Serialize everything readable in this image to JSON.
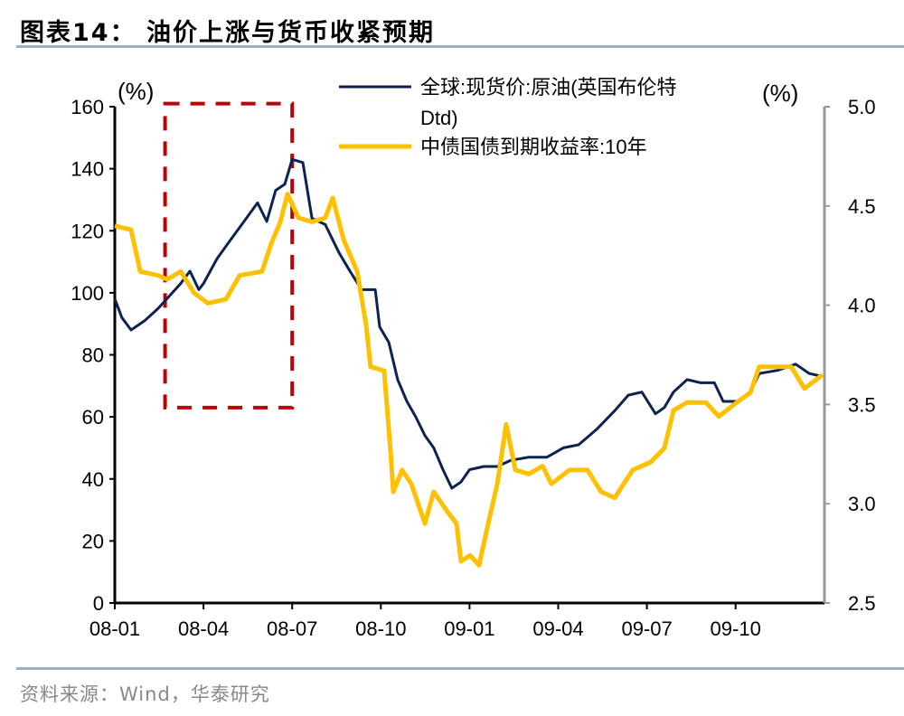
{
  "title": "图表14：  油价上涨与货币收紧预期",
  "source": "资料来源：Wind，华泰研究",
  "chart_data": {
    "type": "line",
    "title": "油价上涨与货币收紧预期",
    "x_unit": "months since 2008-01",
    "x_ticks": [
      {
        "m": 0,
        "label": "08-01"
      },
      {
        "m": 3,
        "label": "08-04"
      },
      {
        "m": 6,
        "label": "08-07"
      },
      {
        "m": 9,
        "label": "08-10"
      },
      {
        "m": 12,
        "label": "09-01"
      },
      {
        "m": 15,
        "label": "09-04"
      },
      {
        "m": 18,
        "label": "09-07"
      },
      {
        "m": 21,
        "label": "09-10"
      }
    ],
    "xlim": [
      0,
      24
    ],
    "left_axis": {
      "label": "(%)",
      "ylim": [
        0,
        160
      ],
      "ticks": [
        "0",
        "20",
        "40",
        "60",
        "80",
        "100",
        "120",
        "140",
        "160"
      ]
    },
    "right_axis": {
      "label": "(%)",
      "ylim": [
        2.5,
        5.0
      ],
      "ticks": [
        "2.5",
        "3.0",
        "3.5",
        "4.0",
        "4.5",
        "5.0"
      ]
    },
    "legend_position": "top-right",
    "series": [
      {
        "name": "全球:现货价:原油(英国布伦特Dtd)",
        "axis": "left",
        "color": "#0c2352",
        "x": [
          0,
          0.24,
          0.55,
          1.01,
          1.47,
          2.23,
          2.54,
          2.84,
          3.0,
          3.46,
          3.91,
          4.37,
          4.83,
          5.14,
          5.44,
          5.75,
          6.0,
          6.36,
          6.67,
          7.12,
          7.58,
          7.89,
          8.35,
          8.81,
          8.96,
          9.27,
          9.57,
          9.88,
          10.18,
          10.49,
          10.79,
          11.1,
          11.4,
          11.71,
          12.0,
          12.48,
          12.94,
          13.39,
          14.01,
          14.62,
          15.17,
          15.69,
          16.3,
          16.91,
          17.37,
          17.83,
          18.29,
          18.59,
          18.9,
          19.36,
          19.82,
          20.28,
          20.58,
          21.04,
          21.5,
          21.8,
          22.42,
          23.03,
          23.49,
          23.94
        ],
        "y": [
          98,
          92,
          88,
          91,
          95,
          103,
          107,
          101,
          103,
          111,
          117,
          123,
          129,
          123,
          133,
          135,
          143,
          142,
          124,
          122,
          113,
          108,
          101,
          101,
          89,
          84,
          72,
          65,
          60,
          54,
          50,
          43,
          37,
          39,
          43,
          44,
          44,
          46,
          47,
          47,
          50,
          51,
          56,
          62,
          67,
          68,
          61,
          63,
          68,
          72,
          71,
          71,
          65,
          65,
          68,
          74,
          75,
          77,
          74,
          73
        ]
      },
      {
        "name": "中债国债到期收益率:10年",
        "axis": "right",
        "color": "#ffc000",
        "x": [
          0,
          0.55,
          0.86,
          1.47,
          1.77,
          2.23,
          2.69,
          3.15,
          3.76,
          4.22,
          4.98,
          5.29,
          5.6,
          5.84,
          6.21,
          6.67,
          7.12,
          7.37,
          7.74,
          8.2,
          8.5,
          8.65,
          9.11,
          9.33,
          9.42,
          9.72,
          10.03,
          10.49,
          10.79,
          11.25,
          11.56,
          11.71,
          12.02,
          12.32,
          12.63,
          12.94,
          13.24,
          13.55,
          14.01,
          14.47,
          14.77,
          15.38,
          15.99,
          16.45,
          16.91,
          17.52,
          18.13,
          18.59,
          18.9,
          19.36,
          20.0,
          20.43,
          21.04,
          21.5,
          21.8,
          22.42,
          22.88,
          23.33,
          23.94
        ],
        "y": [
          4.4,
          4.38,
          4.17,
          4.15,
          4.13,
          4.17,
          4.06,
          4.01,
          4.03,
          4.15,
          4.17,
          4.31,
          4.42,
          4.56,
          4.44,
          4.42,
          4.44,
          4.54,
          4.33,
          4.17,
          3.9,
          3.69,
          3.67,
          3.26,
          3.06,
          3.17,
          3.1,
          2.9,
          3.06,
          2.96,
          2.9,
          2.71,
          2.74,
          2.69,
          2.9,
          3.1,
          3.4,
          3.17,
          3.15,
          3.19,
          3.1,
          3.17,
          3.17,
          3.06,
          3.03,
          3.17,
          3.21,
          3.28,
          3.47,
          3.51,
          3.51,
          3.44,
          3.51,
          3.56,
          3.69,
          3.69,
          3.69,
          3.58,
          3.65
        ]
      }
    ],
    "annotations": [
      {
        "type": "dashed-rect",
        "color": "#c00000",
        "x": [
          1.7,
          6.0
        ],
        "y_left": [
          63,
          161
        ]
      }
    ]
  }
}
